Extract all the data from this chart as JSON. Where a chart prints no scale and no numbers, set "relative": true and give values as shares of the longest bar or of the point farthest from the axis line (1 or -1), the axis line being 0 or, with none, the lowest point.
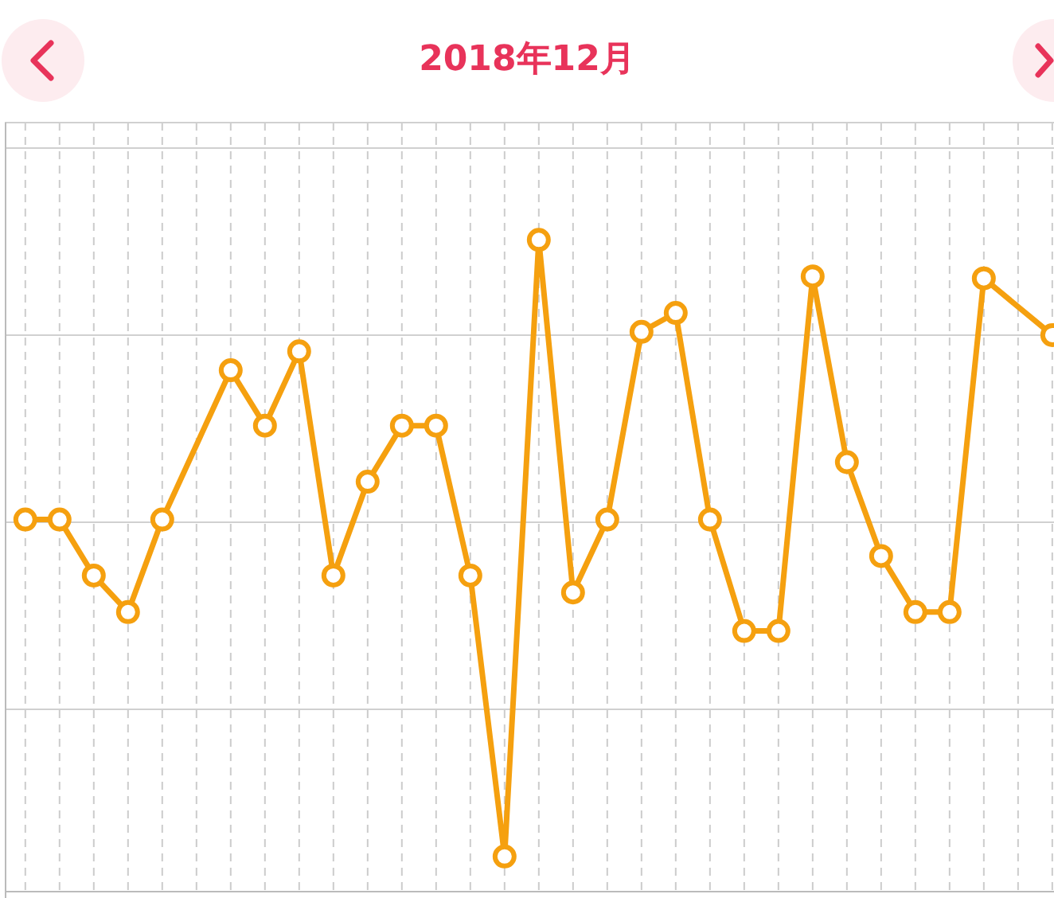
{
  "chart_data": {
    "type": "line",
    "title": "2018年12月",
    "relative": true,
    "categories": [
      null,
      null,
      null,
      null,
      null,
      null,
      null,
      null,
      null,
      null,
      null,
      null,
      null,
      null,
      null,
      null,
      null,
      null,
      null,
      null,
      null,
      null,
      null,
      null,
      null,
      null,
      null,
      null,
      null,
      null,
      null
    ],
    "series": [
      {
        "color": "#f5a00f",
        "values": [
          0.571,
          0.571,
          0.485,
          0.429,
          0.571,
          null,
          0.8,
          0.715,
          0.829,
          0.485,
          0.629,
          0.715,
          0.715,
          0.485,
          0.054,
          1,
          0.459,
          0.571,
          0.859,
          0.888,
          0.571,
          0.4,
          0.4,
          0.944,
          0.659,
          0.515,
          0.429,
          0.429,
          0.941,
          null,
          0.854
        ]
      }
    ],
    "marker": "circle",
    "line_style": "solid",
    "grid": true,
    "tick_labels": false
  }
}
